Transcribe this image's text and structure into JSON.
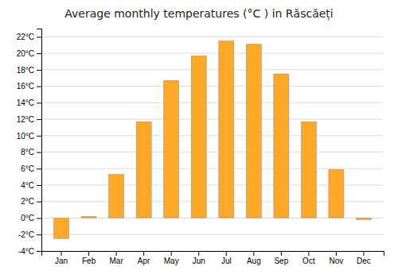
{
  "chart_data": {
    "type": "bar",
    "title": "Average monthly temperatures (°C ) in Răscăeți",
    "categories": [
      "Jan",
      "Feb",
      "Mar",
      "Apr",
      "May",
      "Jun",
      "Jul",
      "Aug",
      "Sep",
      "Oct",
      "Nov",
      "Dec"
    ],
    "values": [
      -2.5,
      0.2,
      5.3,
      11.7,
      16.7,
      19.7,
      21.5,
      21.1,
      17.5,
      11.7,
      5.9,
      -0.2
    ],
    "color": "#FFA726",
    "ylim": [
      -4,
      23
    ],
    "yticks": [
      {
        "value": -4,
        "label": "-4°C"
      },
      {
        "value": -2,
        "label": "-2°C"
      },
      {
        "value": 0,
        "label": "0°C"
      },
      {
        "value": 2,
        "label": "2°C"
      },
      {
        "value": 4,
        "label": "4°C"
      },
      {
        "value": 6,
        "label": "6°C"
      },
      {
        "value": 8,
        "label": "8°C"
      },
      {
        "value": 10,
        "label": "10°C"
      },
      {
        "value": 12,
        "label": "12°C"
      },
      {
        "value": 14,
        "label": "14°C"
      },
      {
        "value": 16,
        "label": "16°C"
      },
      {
        "value": 18,
        "label": "18°C"
      },
      {
        "value": 20,
        "label": "20°C"
      },
      {
        "value": 22,
        "label": "22°C"
      }
    ],
    "grid": true
  }
}
